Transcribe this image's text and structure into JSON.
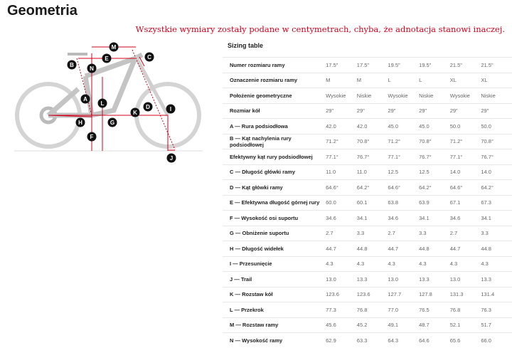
{
  "title": "Geometria",
  "note": "Wszystkie wymiary zostały podane w centymetrach, chyba, że adnotacja stanowi inaczej.",
  "diagram": {
    "labels": [
      "M",
      "E",
      "C",
      "B",
      "N",
      "A",
      "L",
      "D",
      "I",
      "K",
      "H",
      "G",
      "F",
      "J"
    ],
    "accent": "#d0021b"
  },
  "table": {
    "title": "Sizing table",
    "rows": [
      {
        "label": "Numer rozmiaru ramy",
        "values": [
          "17.5\"",
          "17.5\"",
          "19.5\"",
          "19.5\"",
          "21.5\"",
          "21.5\""
        ]
      },
      {
        "label": "Oznaczenie rozmiaru ramy",
        "values": [
          "M",
          "M",
          "L",
          "L",
          "XL",
          "XL"
        ]
      },
      {
        "label": "Położenie geometryczne",
        "values": [
          "Wysokie",
          "Niskie",
          "Wysokie",
          "Niskie",
          "Wysokie",
          "Niskie"
        ]
      },
      {
        "label": "Rozmiar kół",
        "values": [
          "29\"",
          "29\"",
          "29\"",
          "29\"",
          "29\"",
          "29\""
        ]
      },
      {
        "label": "A — Rura podsiodłowa",
        "values": [
          "42.0",
          "42.0",
          "45.0",
          "45.0",
          "50.0",
          "50.0"
        ]
      },
      {
        "label": "B — Kąt nachylenia rury podsiodłowej",
        "values": [
          "71.2°",
          "70.8°",
          "71.2°",
          "70.8°",
          "71.2°",
          "70.8°"
        ]
      },
      {
        "label": "Efektywny kąt rury podsiodłowej",
        "values": [
          "77.1°",
          "76.7°",
          "77.1°",
          "76.7°",
          "77.1°",
          "76.7°"
        ]
      },
      {
        "label": "C — Długość główki ramy",
        "values": [
          "11.0",
          "11.0",
          "12.5",
          "12.5",
          "14.0",
          "14.0"
        ]
      },
      {
        "label": "D — Kąt główki ramy",
        "values": [
          "64.6°",
          "64.2°",
          "64.6°",
          "64.2°",
          "64.6°",
          "64.2°"
        ]
      },
      {
        "label": "E — Efektywna długość górnej rury",
        "values": [
          "60.0",
          "60.1",
          "63.8",
          "63.9",
          "67.1",
          "67.3"
        ]
      },
      {
        "label": "F — Wysokość osi suportu",
        "values": [
          "34.6",
          "34.1",
          "34.6",
          "34.1",
          "34.6",
          "34.1"
        ]
      },
      {
        "label": "G — Obniżenie suportu",
        "values": [
          "2.7",
          "3.3",
          "2.7",
          "3.3",
          "2.7",
          "3.3"
        ]
      },
      {
        "label": "H — Długość widełek",
        "values": [
          "44.7",
          "44.8",
          "44.7",
          "44.8",
          "44.7",
          "44.8"
        ]
      },
      {
        "label": "I — Przesunięcie",
        "values": [
          "4.3",
          "4.3",
          "4.3",
          "4.3",
          "4.3",
          "4.3"
        ]
      },
      {
        "label": "J — Trail",
        "values": [
          "13.0",
          "13.3",
          "13.0",
          "13.3",
          "13.0",
          "13.3"
        ]
      },
      {
        "label": "K — Rozstaw kół",
        "values": [
          "123.6",
          "123.6",
          "127.7",
          "127.8",
          "131.3",
          "131.4"
        ]
      },
      {
        "label": "L — Przekrok",
        "values": [
          "77.3",
          "76.8",
          "77.0",
          "76.5",
          "76.8",
          "76.3"
        ]
      },
      {
        "label": "M — Rozstaw ramy",
        "values": [
          "45.6",
          "45.2",
          "49.1",
          "48.7",
          "52.1",
          "51.7"
        ]
      },
      {
        "label": "N — Wysokość ramy",
        "values": [
          "62.9",
          "63.3",
          "64.3",
          "64.6",
          "65.6",
          "66.0"
        ]
      }
    ]
  }
}
